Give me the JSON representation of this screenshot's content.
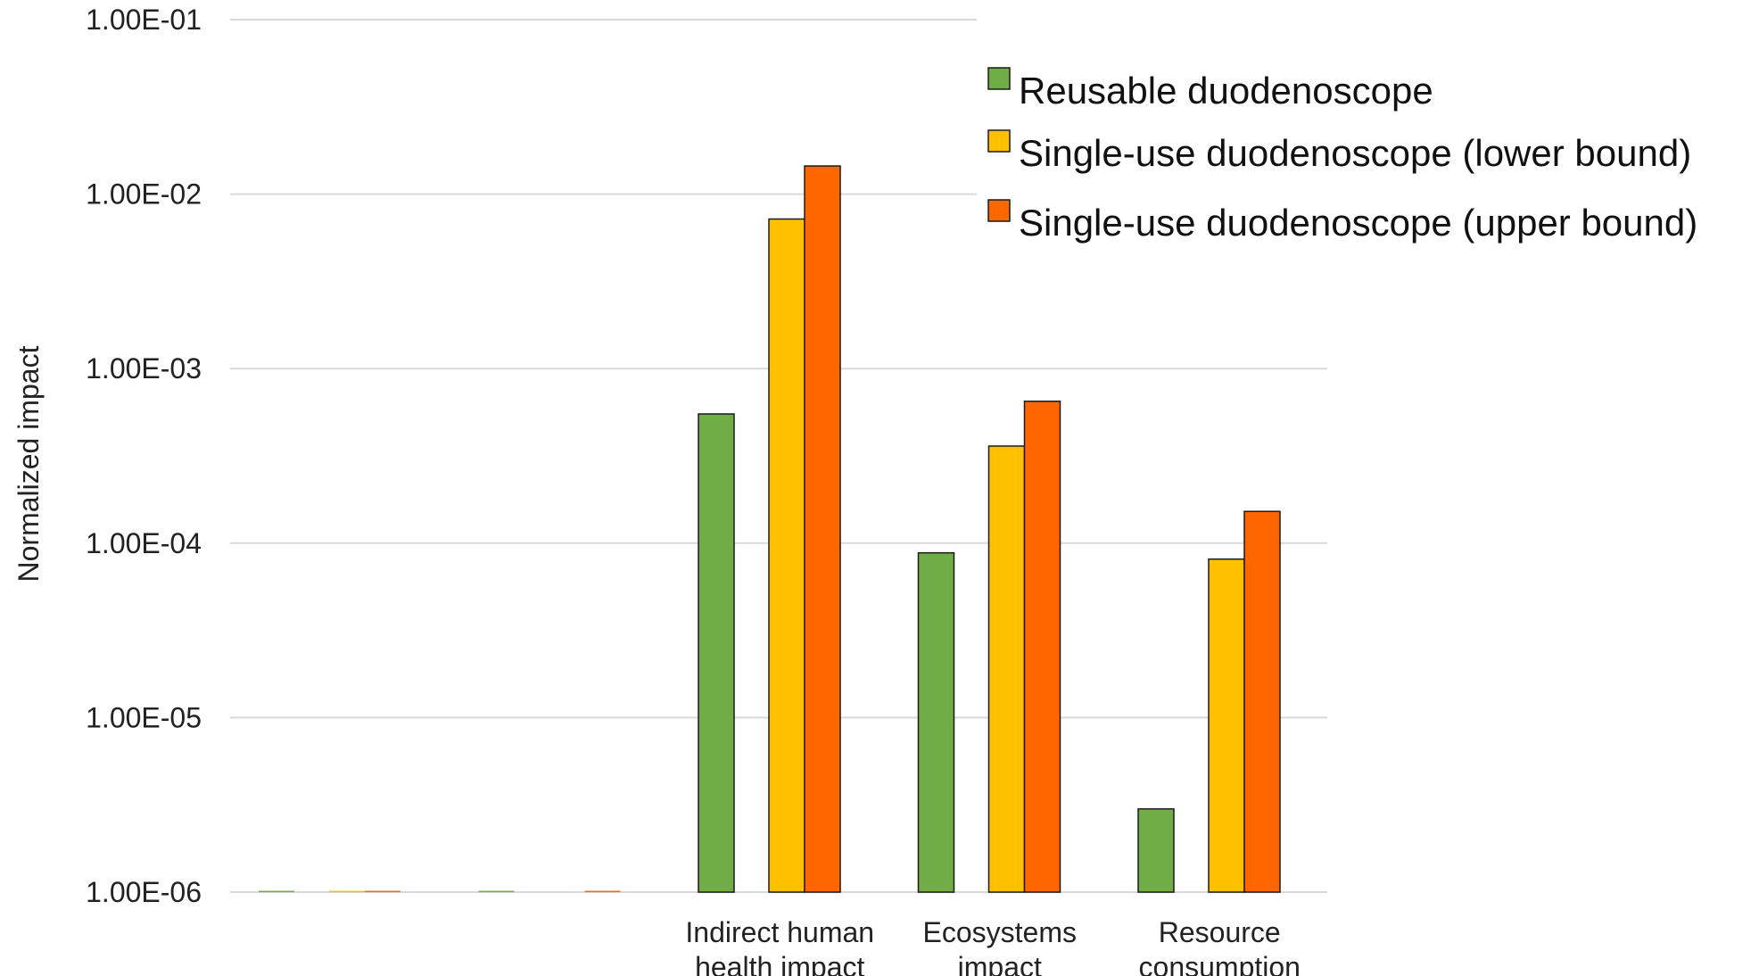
{
  "chart_data": {
    "type": "bar",
    "ylabel": "Normalized impact",
    "xlabel": "",
    "yscale": "log",
    "ylim": [
      1e-06,
      0.1
    ],
    "y_ticks": [
      "1.00E-01",
      "1.00E-02",
      "1.00E-03",
      "1.00E-04",
      "1.00E-05",
      "1.00E-06"
    ],
    "categories": [
      {
        "line1": "",
        "line2": ""
      },
      {
        "line1": "",
        "line2": ""
      },
      {
        "line1": "Indirect human",
        "line2": "health impact"
      },
      {
        "line1": "Ecosystems",
        "line2": "impact"
      },
      {
        "line1": "Resource",
        "line2": "consumption"
      }
    ],
    "legend_position": "top-right",
    "series": [
      {
        "name": "Reusable duodenoscope",
        "color": "#70ad47",
        "values": [
          1e-06,
          1e-06,
          0.00055,
          8.8e-05,
          3e-06
        ]
      },
      {
        "name": "Single-use duodenoscope (lower bound)",
        "color": "#ffc000",
        "values": [
          1e-06,
          null,
          0.0072,
          0.00036,
          8.1e-05
        ]
      },
      {
        "name": "Single-use duodenoscope (upper bound)",
        "color": "#ff6600",
        "values": [
          1e-06,
          1e-06,
          0.0145,
          0.00065,
          0.000152
        ]
      }
    ],
    "grid": true
  }
}
